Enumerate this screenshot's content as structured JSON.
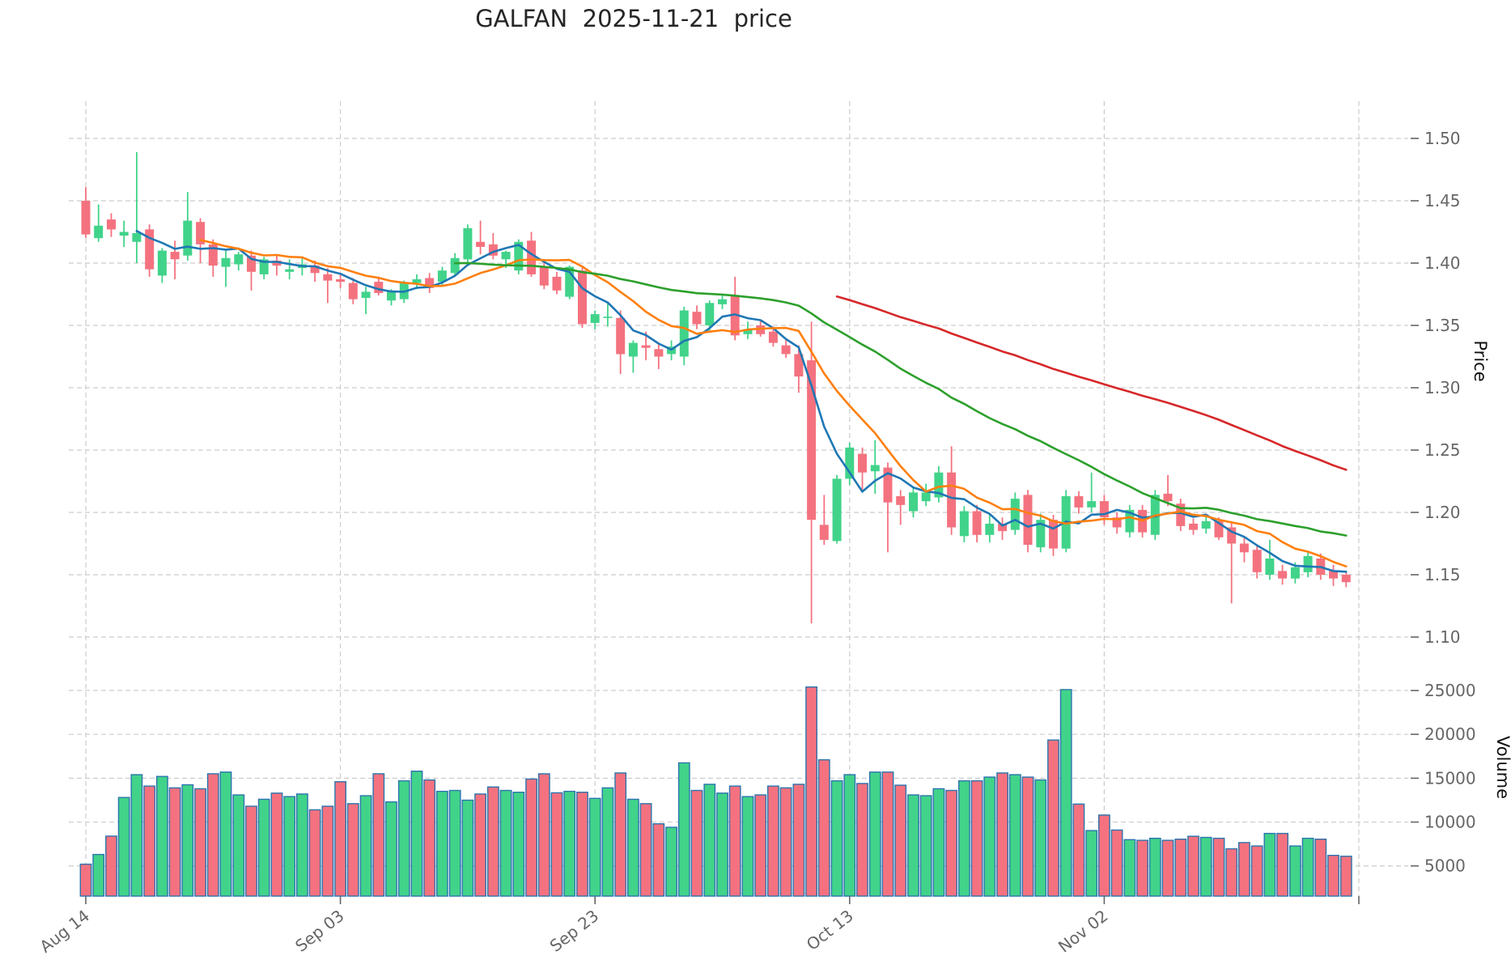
{
  "title": "GALFAN  2025-11-21  price",
  "axes": {
    "price_label": "Price",
    "volume_label": "Volume",
    "price_ticks": [
      {
        "label": "1.50",
        "value": 1.5
      },
      {
        "label": "1.45",
        "value": 1.45
      },
      {
        "label": "1.40",
        "value": 1.4
      },
      {
        "label": "1.35",
        "value": 1.35
      },
      {
        "label": "1.30",
        "value": 1.3
      },
      {
        "label": "1.25",
        "value": 1.25
      },
      {
        "label": "1.20",
        "value": 1.2
      },
      {
        "label": "1.15",
        "value": 1.15
      },
      {
        "label": "1.10",
        "value": 1.1
      }
    ],
    "volume_ticks": [
      {
        "label": "25000",
        "value": 25000
      },
      {
        "label": "20000",
        "value": 20000
      },
      {
        "label": "15000",
        "value": 15000
      },
      {
        "label": "10000",
        "value": 10000
      },
      {
        "label": "5000",
        "value": 5000
      }
    ],
    "x_ticks": [
      {
        "label": "Aug 14",
        "index": 0
      },
      {
        "label": "Sep 03",
        "index": 20
      },
      {
        "label": "Sep 23",
        "index": 40
      },
      {
        "label": "Oct 13",
        "index": 60
      },
      {
        "label": "Nov 02",
        "index": 80
      },
      {
        "label": "",
        "index": 100
      }
    ]
  },
  "colors": {
    "up": "#41d38a",
    "down": "#f4727f",
    "volume_edge": "#2b74ad",
    "ma5": "#1f77b4",
    "ma10": "#ff7f0e",
    "ma30": "#2ca02c",
    "ma60": "#d62728",
    "grid": "#cccccc",
    "tick_text": "#666666",
    "title_text": "#262626",
    "axis_label_text": "#111111"
  },
  "chart_data": {
    "type": "candlestick+volume",
    "title": "GALFAN  2025-11-21  price",
    "ylabel": "Price",
    "ylabel2": "Volume",
    "grid": true,
    "ylim": [
      1.092,
      1.533
    ],
    "volume_ylim": [
      1560,
      28970
    ],
    "num_points": 100,
    "x_tick_labels": [
      "Aug 14",
      "Sep 03",
      "Sep 23",
      "Oct 13",
      "Nov 02"
    ],
    "moving_averages": [
      {
        "name": "MA5",
        "window": 5,
        "color": "#1f77b4"
      },
      {
        "name": "MA10",
        "window": 10,
        "color": "#ff7f0e"
      },
      {
        "name": "MA30",
        "window": 30,
        "color": "#2ca02c"
      },
      {
        "name": "MA60",
        "window": 60,
        "color": "#d62728"
      }
    ],
    "open": [
      1.45,
      1.42,
      1.435,
      1.422,
      1.417,
      1.427,
      1.39,
      1.409,
      1.406,
      1.433,
      1.415,
      1.397,
      1.399,
      1.406,
      1.391,
      1.402,
      1.393,
      1.396,
      1.398,
      1.391,
      1.387,
      1.384,
      1.372,
      1.385,
      1.37,
      1.371,
      1.384,
      1.388,
      1.385,
      1.392,
      1.403,
      1.417,
      1.415,
      1.403,
      1.394,
      1.418,
      1.397,
      1.389,
      1.373,
      1.394,
      1.352,
      1.356,
      1.356,
      1.325,
      1.334,
      1.331,
      1.327,
      1.325,
      1.361,
      1.35,
      1.367,
      1.374,
      1.343,
      1.35,
      1.345,
      1.334,
      1.327,
      1.322,
      1.19,
      1.177,
      1.227,
      1.247,
      1.233,
      1.236,
      1.213,
      1.201,
      1.209,
      1.212,
      1.232,
      1.181,
      1.201,
      1.182,
      1.191,
      1.186,
      1.214,
      1.172,
      1.194,
      1.171,
      1.213,
      1.204,
      1.209,
      1.196,
      1.184,
      1.202,
      1.182,
      1.215,
      1.207,
      1.191,
      1.187,
      1.193,
      1.188,
      1.175,
      1.17,
      1.15,
      1.153,
      1.147,
      1.152,
      1.163,
      1.153,
      1.15
    ],
    "high": [
      1.461,
      1.447,
      1.44,
      1.434,
      1.489,
      1.431,
      1.412,
      1.418,
      1.457,
      1.436,
      1.419,
      1.41,
      1.409,
      1.41,
      1.405,
      1.406,
      1.403,
      1.404,
      1.402,
      1.396,
      1.392,
      1.388,
      1.381,
      1.389,
      1.379,
      1.386,
      1.391,
      1.392,
      1.397,
      1.408,
      1.431,
      1.434,
      1.424,
      1.41,
      1.419,
      1.425,
      1.401,
      1.393,
      1.398,
      1.397,
      1.362,
      1.368,
      1.362,
      1.338,
      1.345,
      1.336,
      1.338,
      1.365,
      1.366,
      1.37,
      1.375,
      1.389,
      1.353,
      1.354,
      1.349,
      1.339,
      1.334,
      1.353,
      1.214,
      1.23,
      1.256,
      1.252,
      1.258,
      1.24,
      1.218,
      1.22,
      1.223,
      1.237,
      1.253,
      1.205,
      1.206,
      1.198,
      1.196,
      1.216,
      1.218,
      1.199,
      1.198,
      1.218,
      1.217,
      1.232,
      1.214,
      1.2,
      1.206,
      1.206,
      1.218,
      1.23,
      1.211,
      1.195,
      1.197,
      1.196,
      1.192,
      1.18,
      1.174,
      1.178,
      1.158,
      1.16,
      1.169,
      1.167,
      1.158,
      1.153
    ],
    "low": [
      1.42,
      1.417,
      1.421,
      1.413,
      1.4,
      1.389,
      1.384,
      1.387,
      1.402,
      1.4,
      1.389,
      1.381,
      1.394,
      1.378,
      1.387,
      1.39,
      1.387,
      1.39,
      1.385,
      1.368,
      1.38,
      1.367,
      1.359,
      1.374,
      1.366,
      1.368,
      1.379,
      1.376,
      1.382,
      1.39,
      1.399,
      1.407,
      1.403,
      1.396,
      1.391,
      1.389,
      1.379,
      1.375,
      1.371,
      1.348,
      1.347,
      1.349,
      1.311,
      1.312,
      1.322,
      1.315,
      1.322,
      1.318,
      1.347,
      1.346,
      1.363,
      1.338,
      1.339,
      1.341,
      1.333,
      1.324,
      1.296,
      1.111,
      1.174,
      1.175,
      1.222,
      1.218,
      1.215,
      1.168,
      1.19,
      1.196,
      1.205,
      1.208,
      1.182,
      1.176,
      1.176,
      1.176,
      1.178,
      1.182,
      1.168,
      1.168,
      1.165,
      1.168,
      1.199,
      1.2,
      1.19,
      1.183,
      1.18,
      1.18,
      1.178,
      1.205,
      1.185,
      1.182,
      1.183,
      1.178,
      1.127,
      1.16,
      1.147,
      1.146,
      1.142,
      1.143,
      1.148,
      1.146,
      1.141,
      1.14
    ],
    "close": [
      1.423,
      1.43,
      1.427,
      1.425,
      1.424,
      1.395,
      1.41,
      1.403,
      1.434,
      1.415,
      1.398,
      1.404,
      1.407,
      1.393,
      1.403,
      1.398,
      1.395,
      1.399,
      1.392,
      1.386,
      1.385,
      1.371,
      1.377,
      1.376,
      1.377,
      1.384,
      1.387,
      1.38,
      1.394,
      1.404,
      1.428,
      1.413,
      1.406,
      1.409,
      1.417,
      1.391,
      1.382,
      1.378,
      1.397,
      1.351,
      1.359,
      1.357,
      1.327,
      1.336,
      1.332,
      1.325,
      1.333,
      1.362,
      1.351,
      1.368,
      1.371,
      1.342,
      1.347,
      1.343,
      1.336,
      1.327,
      1.309,
      1.194,
      1.178,
      1.227,
      1.252,
      1.232,
      1.238,
      1.208,
      1.206,
      1.216,
      1.216,
      1.232,
      1.188,
      1.201,
      1.182,
      1.191,
      1.185,
      1.211,
      1.174,
      1.194,
      1.171,
      1.213,
      1.204,
      1.209,
      1.196,
      1.188,
      1.202,
      1.184,
      1.214,
      1.209,
      1.189,
      1.186,
      1.193,
      1.18,
      1.175,
      1.168,
      1.152,
      1.163,
      1.147,
      1.156,
      1.165,
      1.15,
      1.147,
      1.144
    ],
    "volume": [
      5200,
      6300,
      8400,
      12800,
      15400,
      14100,
      15200,
      13900,
      14250,
      13800,
      15500,
      15700,
      13100,
      11800,
      12600,
      13300,
      12900,
      13200,
      11400,
      11800,
      14600,
      12100,
      13000,
      15500,
      12300,
      14700,
      15800,
      14800,
      13500,
      13600,
      12500,
      13200,
      14000,
      13600,
      13400,
      14900,
      15500,
      13340,
      13500,
      13400,
      12700,
      13900,
      15600,
      12600,
      12100,
      9800,
      9400,
      16750,
      13600,
      14300,
      13300,
      14100,
      12900,
      13100,
      14100,
      13900,
      14300,
      25400,
      17100,
      14700,
      15400,
      14400,
      15700,
      15700,
      14200,
      13100,
      13000,
      13800,
      13600,
      14700,
      14700,
      15130,
      15600,
      15400,
      15130,
      14800,
      19350,
      25100,
      12050,
      9030,
      10800,
      9090,
      7990,
      7920,
      8150,
      7920,
      8050,
      8380,
      8250,
      8150,
      6950,
      7660,
      7270,
      8700,
      8700,
      7270,
      8150,
      8050,
      6200,
      6100
    ]
  }
}
